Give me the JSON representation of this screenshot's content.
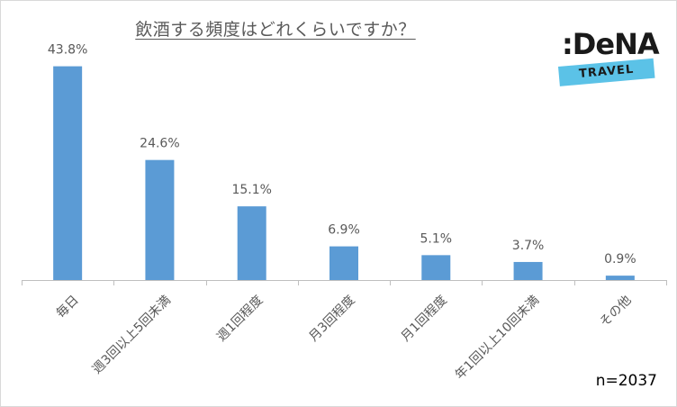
{
  "title": "飲酒する頻度はどれくらいですか？",
  "logo": {
    "main": ":DeNA",
    "sub": "TRAVEL"
  },
  "note": "n=2037",
  "colors": {
    "bar": "#5b9bd5",
    "axis": "#bfbfbf",
    "text": "#595959"
  },
  "chart_data": {
    "type": "bar",
    "title": "飲酒する頻度はどれくらいですか？",
    "categories": [
      "毎日",
      "週3回以上5回未満",
      "週1回程度",
      "月3回程度",
      "月1回程度",
      "年1回以上10回未満",
      "その他"
    ],
    "values": [
      43.8,
      24.6,
      15.1,
      6.9,
      5.1,
      3.7,
      0.9
    ],
    "value_labels": [
      "43.8%",
      "24.6%",
      "15.1%",
      "6.9%",
      "5.1%",
      "3.7%",
      "0.9%"
    ],
    "xlabel": "",
    "ylabel": "",
    "ylim": [
      0,
      50
    ],
    "grid": false,
    "legend": "none"
  }
}
